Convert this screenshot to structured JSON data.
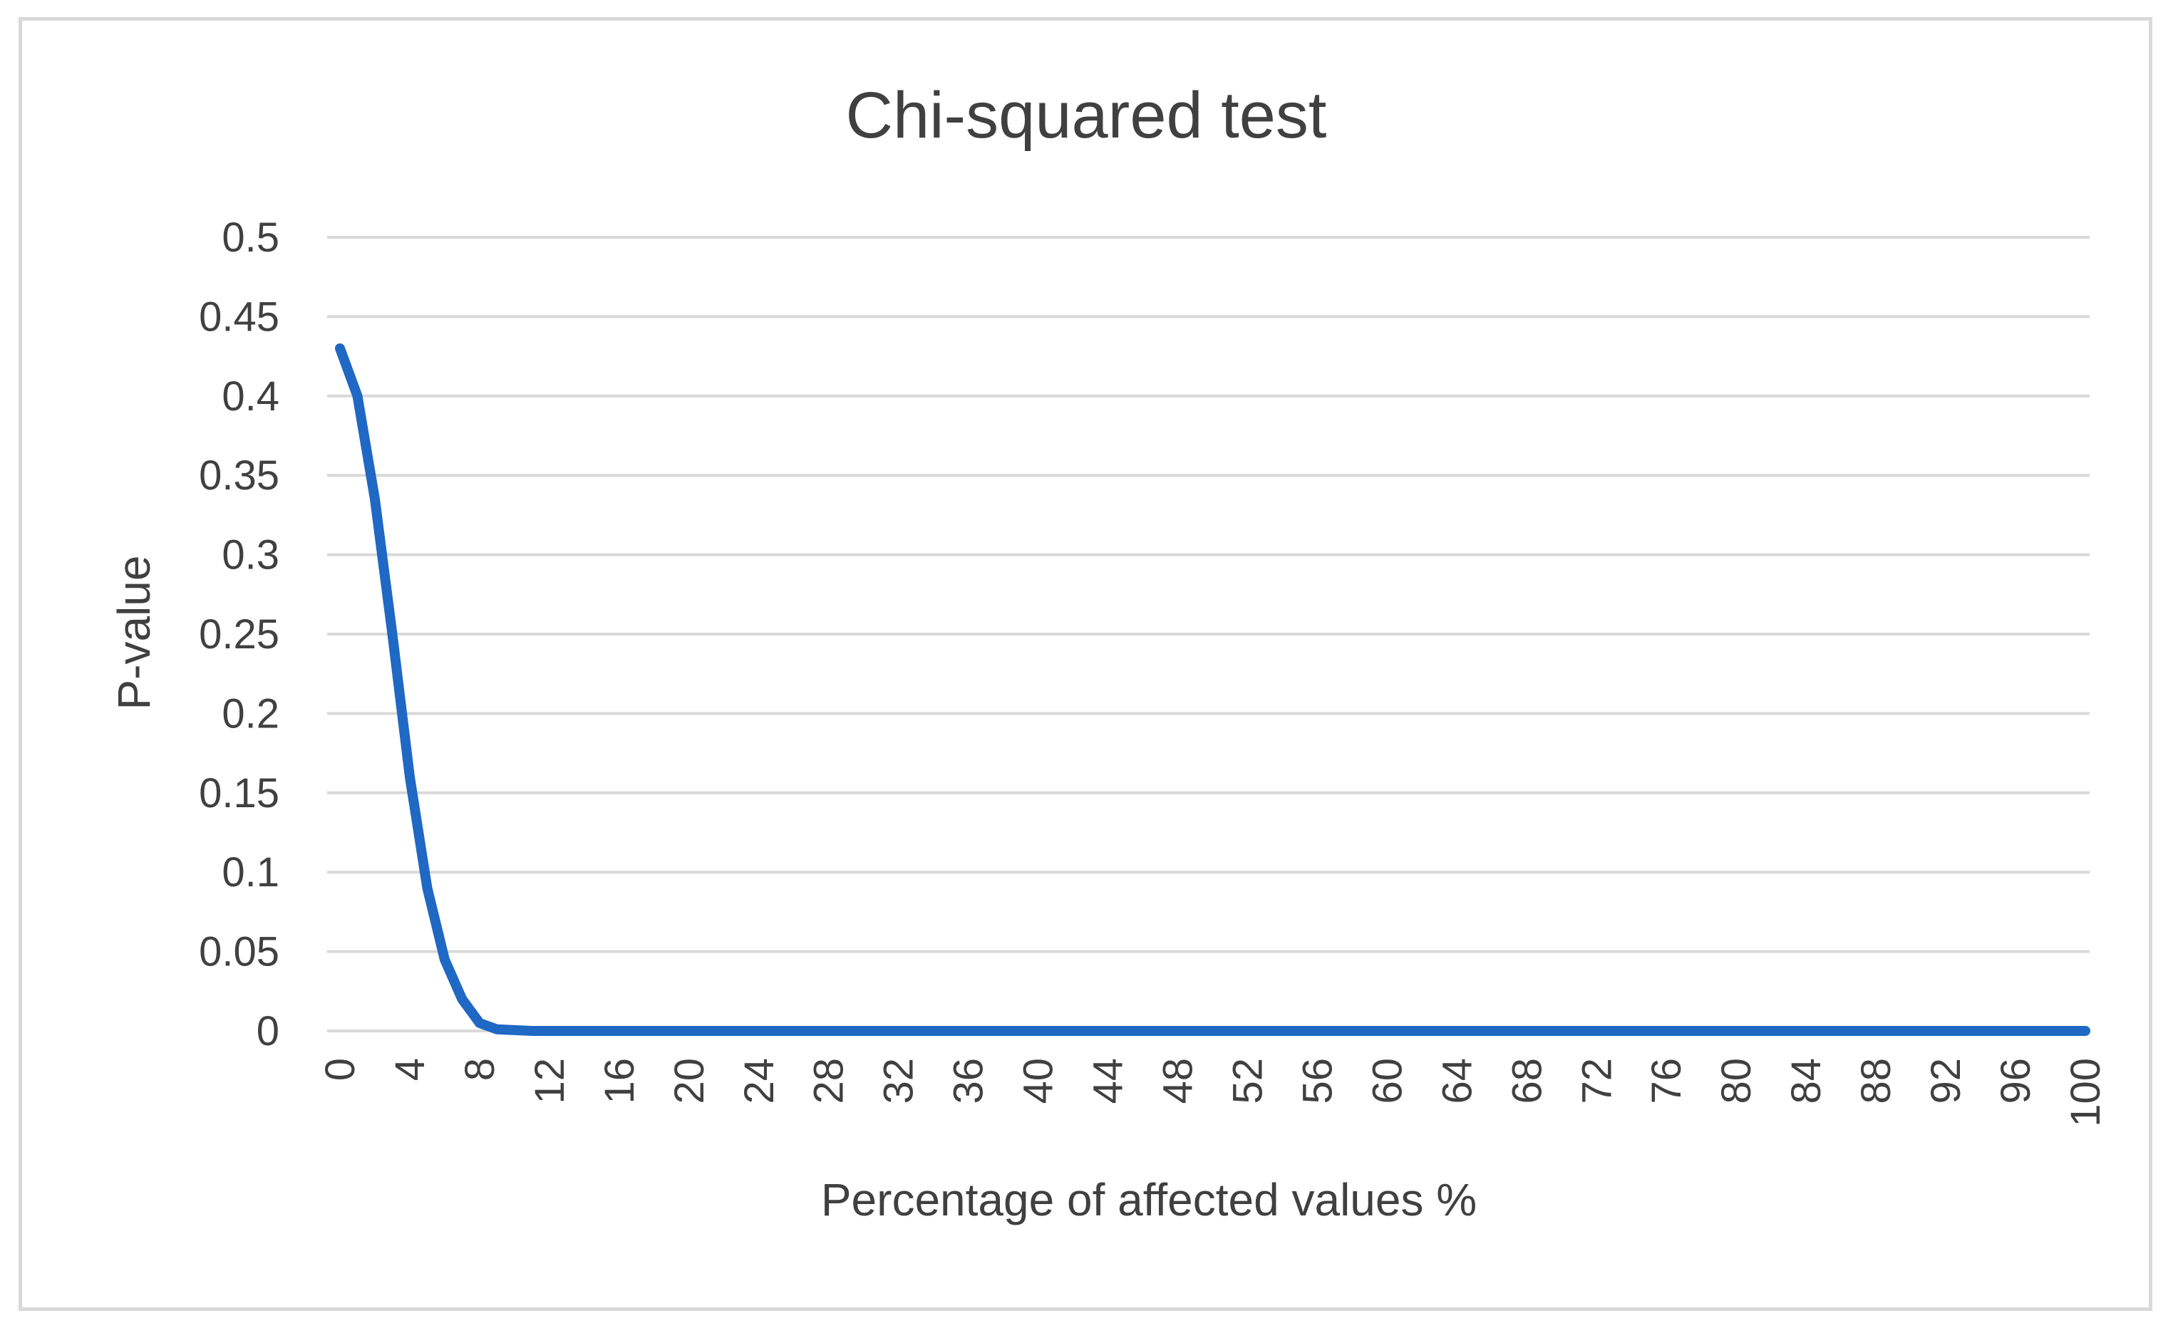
{
  "chart_data": {
    "type": "line",
    "title": "Chi-squared test",
    "xlabel": "Percentage of affected values %",
    "ylabel": "P-value",
    "x_ticks": [
      "0",
      "4",
      "8",
      "12",
      "16",
      "20",
      "24",
      "28",
      "32",
      "36",
      "40",
      "44",
      "48",
      "52",
      "56",
      "60",
      "64",
      "68",
      "72",
      "76",
      "80",
      "84",
      "88",
      "92",
      "96",
      "100"
    ],
    "y_ticks": [
      "0",
      "0.05",
      "0.1",
      "0.15",
      "0.2",
      "0.25",
      "0.3",
      "0.35",
      "0.4",
      "0.45",
      "0.5"
    ],
    "xlim": [
      0,
      100
    ],
    "ylim": [
      0,
      0.5
    ],
    "grid": "horizontal",
    "legend": "none",
    "series": [
      {
        "color": "#1f68c4",
        "x": [
          0,
          1,
          2,
          3,
          4,
          5,
          6,
          7,
          8,
          9,
          10,
          11,
          12,
          14,
          16,
          20,
          24,
          28,
          32,
          36,
          40,
          44,
          48,
          52,
          56,
          60,
          64,
          68,
          72,
          76,
          80,
          84,
          88,
          92,
          96,
          100
        ],
        "y": [
          0.43,
          0.4,
          0.335,
          0.25,
          0.16,
          0.09,
          0.045,
          0.02,
          0.005,
          0.001,
          0.0005,
          0,
          0,
          0,
          0,
          0,
          0,
          0,
          0,
          0,
          0,
          0,
          0,
          0,
          0,
          0,
          0,
          0,
          0,
          0,
          0,
          0,
          0,
          0,
          0,
          0
        ]
      }
    ]
  }
}
